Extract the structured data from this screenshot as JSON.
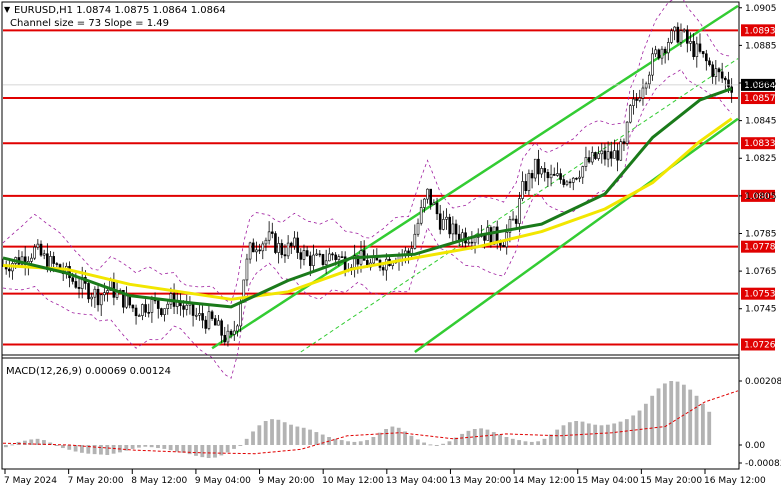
{
  "header": {
    "symbol_line": "EURUSD,H1  1.0874 1.0875 1.0864 1.0864",
    "channel_line": "Channel size = 73 Slope = 1.49"
  },
  "macd": {
    "label": "MACD(12,26,9) 0.00069 0.00124",
    "axis_ticks": [
      "0.00208",
      "0.00",
      "-0.00083"
    ]
  },
  "colors": {
    "level_line": "#e00000",
    "level_badge": "#e00000",
    "bull_candle": "#000000",
    "ma_fast": "#1a7a1a",
    "ma_slow": "#f2e600",
    "channel": "#33cc33",
    "bollinger": "#a020a0",
    "current_price_badge": "#000000",
    "macd_hist": "#b3b3b3",
    "macd_signal": "#e00000"
  },
  "chart_data": {
    "type": "candlestick",
    "symbol": "EURUSD",
    "timeframe": "H1",
    "ylim": [
      1.0722,
      1.0907
    ],
    "price_axis_ticks": [
      "1.0905",
      "1.0885",
      "1.0865",
      "1.0845",
      "1.0825",
      "1.0805",
      "1.0785",
      "1.0765",
      "1.0745"
    ],
    "x_ticks": [
      "7 May 2024",
      "7 May 20:00",
      "8 May 12:00",
      "9 May 04:00",
      "9 May 20:00",
      "10 May 12:00",
      "13 May 04:00",
      "13 May 20:00",
      "14 May 12:00",
      "15 May 04:00",
      "15 May 20:00",
      "16 May 12:00"
    ],
    "levels": [
      {
        "label": "1.0893",
        "value": 1.0893
      },
      {
        "label": "1.0857",
        "value": 1.0857
      },
      {
        "label": "1.0833",
        "value": 1.0833
      },
      {
        "label": "1.0805",
        "value": 1.0805
      },
      {
        "label": "1.0778",
        "value": 1.0778
      },
      {
        "label": "1.0753",
        "value": 1.0753
      },
      {
        "label": "1.0726",
        "value": 1.0726
      }
    ],
    "current_price": {
      "label": "1.0864",
      "value": 1.0864
    },
    "close_path": [
      [
        0,
        1.0768
      ],
      [
        6,
        1.0772
      ],
      [
        10,
        1.0776
      ],
      [
        14,
        1.077
      ],
      [
        18,
        1.0766
      ],
      [
        22,
        1.076
      ],
      [
        26,
        1.0756
      ],
      [
        30,
        1.0752
      ],
      [
        34,
        1.0756
      ],
      [
        38,
        1.075
      ],
      [
        42,
        1.0744
      ],
      [
        46,
        1.0748
      ],
      [
        50,
        1.0746
      ],
      [
        54,
        1.075
      ],
      [
        58,
        1.0744
      ],
      [
        62,
        1.074
      ],
      [
        66,
        1.0738
      ],
      [
        70,
        1.073
      ],
      [
        72,
        1.0728
      ],
      [
        74,
        1.074
      ],
      [
        76,
        1.0762
      ],
      [
        78,
        1.0776
      ],
      [
        80,
        1.078
      ],
      [
        84,
        1.0782
      ],
      [
        88,
        1.0776
      ],
      [
        92,
        1.0778
      ],
      [
        96,
        1.0772
      ],
      [
        100,
        1.077
      ],
      [
        104,
        1.0774
      ],
      [
        108,
        1.077
      ],
      [
        112,
        1.0772
      ],
      [
        116,
        1.0768
      ],
      [
        120,
        1.077
      ],
      [
        124,
        1.0774
      ],
      [
        128,
        1.0774
      ],
      [
        132,
        1.0796
      ],
      [
        134,
        1.0806
      ],
      [
        138,
        1.0792
      ],
      [
        142,
        1.0786
      ],
      [
        146,
        1.0784
      ],
      [
        150,
        1.0786
      ],
      [
        154,
        1.0784
      ],
      [
        158,
        1.0782
      ],
      [
        162,
        1.0794
      ],
      [
        164,
        1.0808
      ],
      [
        168,
        1.082
      ],
      [
        172,
        1.0814
      ],
      [
        176,
        1.0814
      ],
      [
        180,
        1.0816
      ],
      [
        184,
        1.0822
      ],
      [
        188,
        1.0826
      ],
      [
        192,
        1.0826
      ],
      [
        196,
        1.083
      ],
      [
        198,
        1.085
      ],
      [
        200,
        1.0856
      ],
      [
        202,
        1.0866
      ],
      [
        206,
        1.088
      ],
      [
        210,
        1.0888
      ],
      [
        214,
        1.0892
      ],
      [
        216,
        1.0886
      ],
      [
        220,
        1.088
      ],
      [
        224,
        1.0872
      ],
      [
        228,
        1.0866
      ],
      [
        230,
        1.0864
      ]
    ],
    "ma_fast_path": [
      [
        0,
        1.0772
      ],
      [
        20,
        1.0764
      ],
      [
        40,
        1.0752
      ],
      [
        60,
        1.0748
      ],
      [
        72,
        1.0746
      ],
      [
        90,
        1.076
      ],
      [
        110,
        1.0772
      ],
      [
        130,
        1.0774
      ],
      [
        150,
        1.0784
      ],
      [
        170,
        1.079
      ],
      [
        190,
        1.0806
      ],
      [
        205,
        1.0836
      ],
      [
        220,
        1.0856
      ],
      [
        230,
        1.0862
      ]
    ],
    "ma_slow_path": [
      [
        0,
        1.0768
      ],
      [
        20,
        1.0766
      ],
      [
        40,
        1.0758
      ],
      [
        60,
        1.0753
      ],
      [
        72,
        1.075
      ],
      [
        90,
        1.0754
      ],
      [
        110,
        1.0766
      ],
      [
        130,
        1.0772
      ],
      [
        150,
        1.0778
      ],
      [
        170,
        1.0786
      ],
      [
        190,
        1.0798
      ],
      [
        205,
        1.0812
      ],
      [
        220,
        1.0834
      ],
      [
        230,
        1.0846
      ]
    ],
    "channel_lines": [
      {
        "name": "upper",
        "from": [
          66,
          1.0724
        ],
        "to": [
          232,
          1.0906
        ]
      },
      {
        "name": "mid",
        "from": [
          94,
          1.0722
        ],
        "to": [
          232,
          1.0878
        ]
      },
      {
        "name": "lower",
        "from": [
          130,
          1.0722
        ],
        "to": [
          232,
          1.0846
        ]
      }
    ],
    "macd_hist": [
      -0.0001,
      2e-05,
      0.0001,
      0.00014,
      0.00018,
      0.0002,
      0.00016,
      8e-05,
      -4e-05,
      -0.00014,
      -0.00022,
      -0.0003,
      -0.00036,
      -0.0004,
      -0.00042,
      -0.00044,
      -0.00046,
      -0.0004,
      -0.00034,
      -0.00026,
      -0.00018,
      -0.00012,
      -8e-05,
      -0.0001,
      -0.00014,
      -0.00018,
      -0.00024,
      -0.0003,
      -0.00036,
      -0.00042,
      -0.0005,
      -0.00056,
      -0.0006,
      -0.00058,
      -0.00048,
      -0.00034,
      -0.00018,
      0.0,
      0.0002,
      0.00044,
      0.00064,
      0.00078,
      0.00084,
      0.00082,
      0.00074,
      0.00066,
      0.0006,
      0.00056,
      0.0005,
      0.00042,
      0.00034,
      0.00026,
      0.0002,
      0.00016,
      0.00012,
      0.0001,
      0.00012,
      0.00016,
      0.00026,
      0.0004,
      0.00052,
      0.0006,
      0.00056,
      0.00044,
      0.0003,
      0.00018,
      8e-05,
      2e-05,
      0.0,
      4e-05,
      0.00012,
      0.00024,
      0.00036,
      0.00046,
      0.00052,
      0.00054,
      0.0005,
      0.00042,
      0.00034,
      0.00026,
      0.0002,
      0.00016,
      0.00012,
      0.0001,
      0.00012,
      0.0002,
      0.00034,
      0.0005,
      0.00064,
      0.00074,
      0.00078,
      0.00076,
      0.0007,
      0.00066,
      0.00064,
      0.00066,
      0.0007,
      0.00076,
      0.00084,
      0.00096,
      0.00112,
      0.00134,
      0.0016,
      0.00184,
      0.002,
      0.00208,
      0.00206,
      0.00196,
      0.0018,
      0.0016,
      0.00134,
      0.00108
    ],
    "macd_signal": [
      [
        0,
        6e-05
      ],
      [
        10,
        0.0
      ],
      [
        20,
        -0.00024
      ],
      [
        30,
        -0.00036
      ],
      [
        38,
        -0.0004
      ],
      [
        45,
        -0.0002
      ],
      [
        52,
        0.0003
      ],
      [
        60,
        0.0004
      ],
      [
        68,
        0.0002
      ],
      [
        76,
        0.00036
      ],
      [
        84,
        0.0003
      ],
      [
        92,
        0.0004
      ],
      [
        100,
        0.0006
      ],
      [
        106,
        0.0014
      ],
      [
        111,
        0.00176
      ]
    ]
  }
}
